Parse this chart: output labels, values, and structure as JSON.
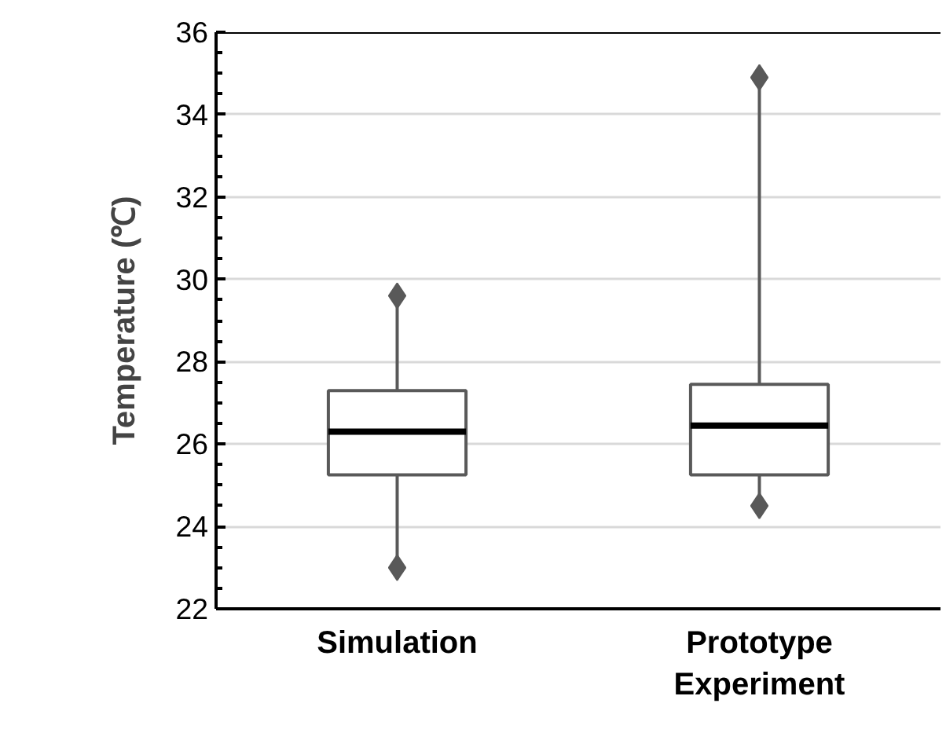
{
  "chart_data": {
    "type": "box",
    "ylabel": "Temperature (℃)",
    "categories": [
      "Simulation",
      "Prototype Experiment"
    ],
    "boxes": [
      {
        "low": 23.0,
        "q1": 25.25,
        "median": 26.3,
        "q3": 27.3,
        "high": 29.6
      },
      {
        "low": 24.5,
        "q1": 25.25,
        "median": 26.45,
        "q3": 27.45,
        "high": 34.9
      }
    ],
    "series": [
      {
        "type": "scatter",
        "color": "#595959",
        "marker": "diamond",
        "x": [
          "Simulation",
          "Simulation",
          "Prototype Experiment",
          "Prototype Experiment"
        ],
        "values": [
          23.0,
          29.6,
          24.5,
          34.9
        ]
      }
    ],
    "ylim": [
      22,
      36
    ],
    "yticks": [
      22,
      24,
      26,
      28,
      30,
      32,
      34,
      36
    ],
    "grid": "y",
    "color": "#595959"
  }
}
